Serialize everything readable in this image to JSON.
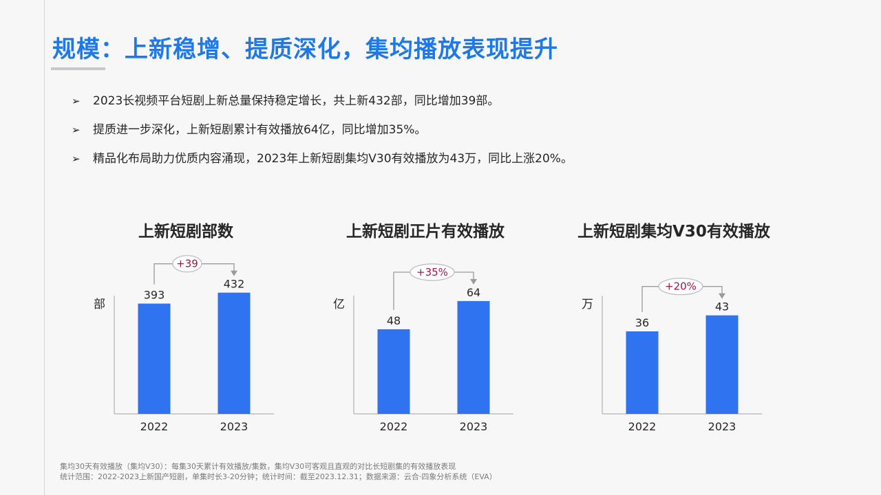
{
  "page": {
    "title": "规模：上新稳增、提质深化，集均播放表现提升",
    "bullet_marker": "➢",
    "bullets": [
      "2023长视频平台短剧上新总量保持稳定增长，共上新432部，同比增加39部。",
      "提质进一步深化，上新短剧累计有效播放64亿，同比增加35%。",
      "精品化布局助力优质内容涌现，2023年上新短剧集均V30有效播放为43万，同比上涨20%。"
    ],
    "footer": [
      "集均30天有效播放（集均V30）：每集30天累计有效播放/集数，集均V30可客观且直观的对比长短剧集的有效播放表现",
      "统计范围：2022-2023上新国产短剧，单集时长3-20分钟；统计时间：截至2023.12.31；数据来源：云合·四象分析系统（EVA）"
    ]
  },
  "colors": {
    "title": "#1f78e8",
    "bar": "#2f73f0",
    "badge_text": "#a4123f",
    "axis": "#bfbfbf"
  },
  "chart_data": [
    {
      "type": "bar",
      "title": "上新短剧部数",
      "ylabel": "部",
      "categories": [
        "2022",
        "2023"
      ],
      "values": [
        393,
        432
      ],
      "value_labels": [
        "393",
        "432"
      ],
      "ylim": [
        0,
        490
      ],
      "change_label": "+39",
      "grid": false
    },
    {
      "type": "bar",
      "title": "上新短剧正片有效播放",
      "ylabel": "亿",
      "categories": [
        "2022",
        "2023"
      ],
      "values": [
        48,
        64
      ],
      "value_labels": [
        "48",
        "64"
      ],
      "ylim": [
        0,
        78
      ],
      "change_label": "+35%",
      "grid": false
    },
    {
      "type": "bar",
      "title": "上新短剧集均V30有效播放",
      "ylabel": "万",
      "categories": [
        "2022",
        "2023"
      ],
      "values": [
        36,
        43
      ],
      "value_labels": [
        "36",
        "43"
      ],
      "ylim": [
        0,
        60
      ],
      "change_label": "+20%",
      "grid": false
    }
  ]
}
